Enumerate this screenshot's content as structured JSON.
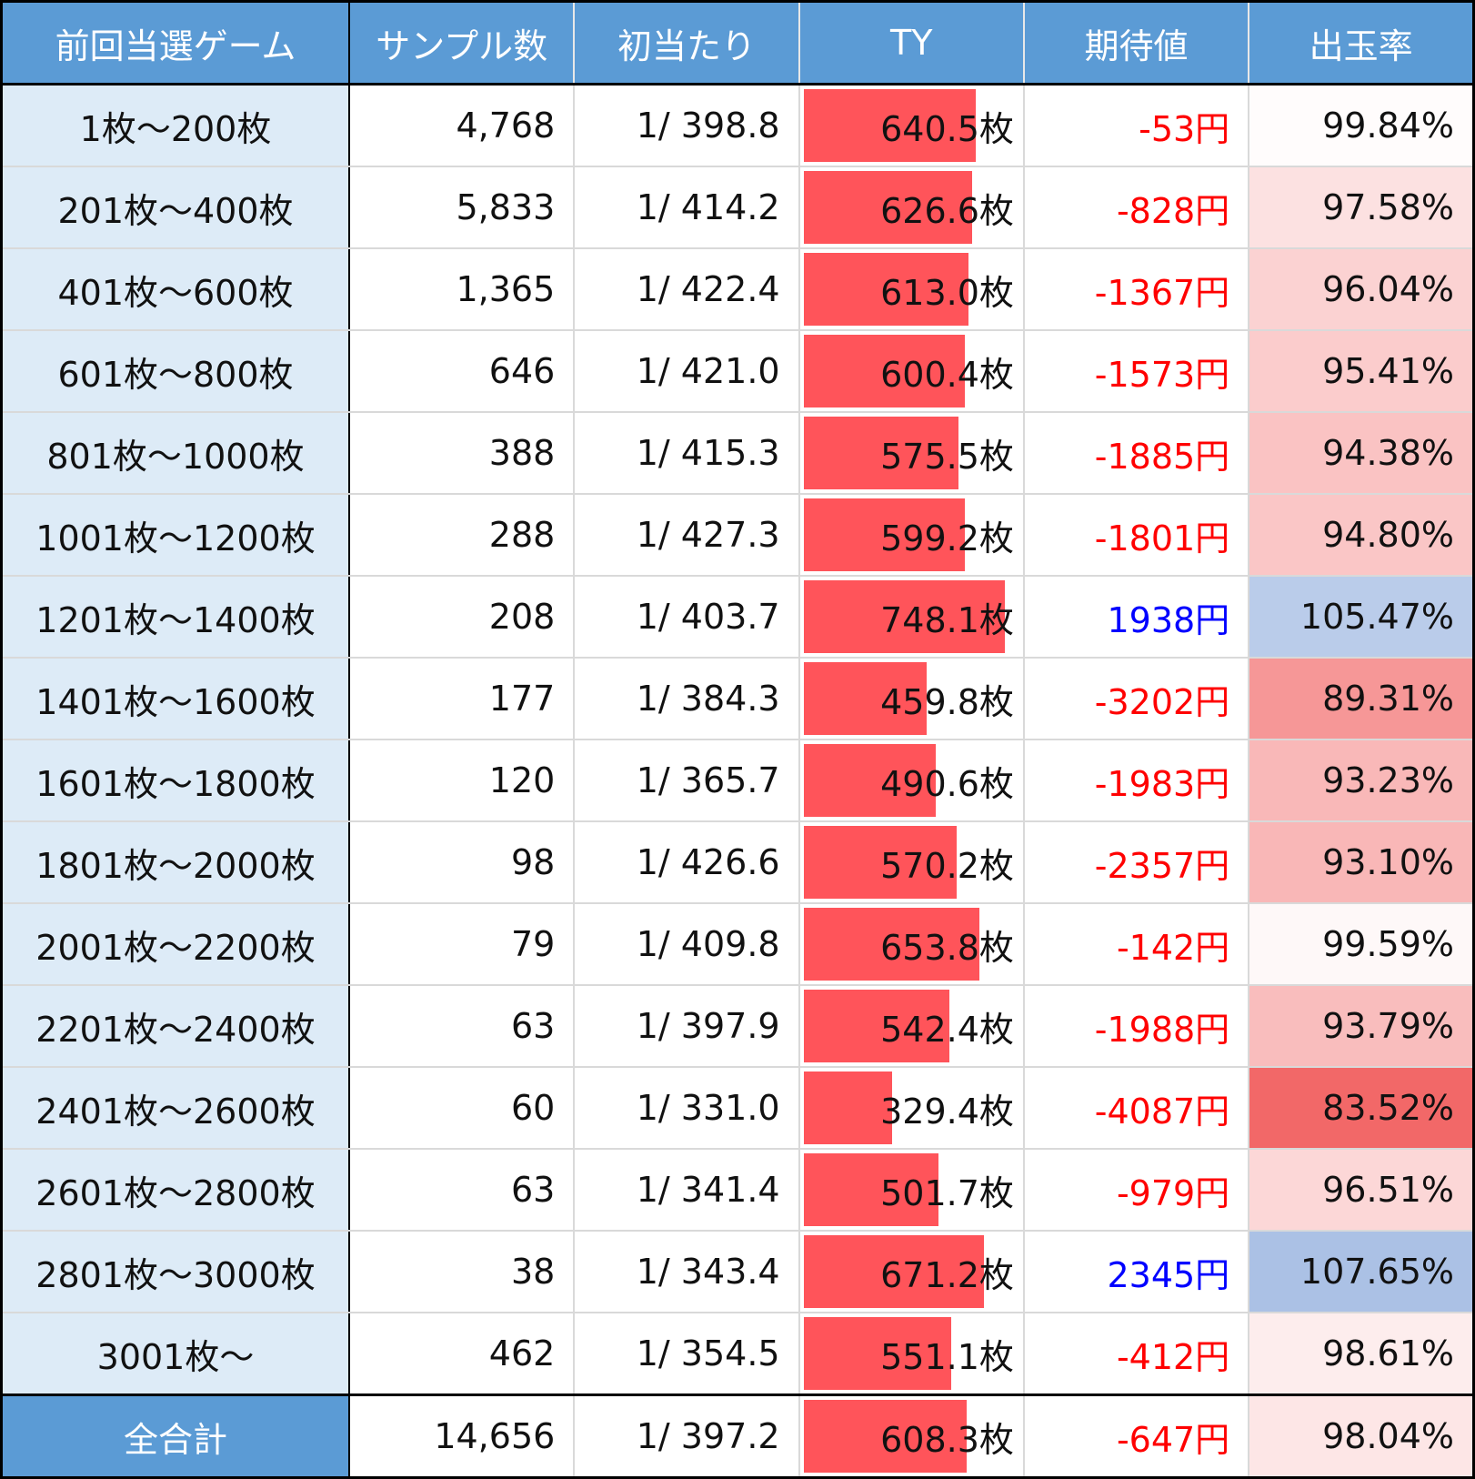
{
  "headers": [
    "前回当選ゲーム",
    "サンプル数",
    "初当たり",
    "TY",
    "期待値",
    "出玉率"
  ],
  "rows": [
    {
      "range": "1枚～200枚",
      "samples": "4,768",
      "first_hit": "1/ 398.8",
      "ty": 640.5,
      "ty_label": "640.5枚",
      "ev": "-53円",
      "ev_sign": "neg",
      "rate": 99.84,
      "rate_label": "99.84%"
    },
    {
      "range": "201枚～400枚",
      "samples": "5,833",
      "first_hit": "1/ 414.2",
      "ty": 626.6,
      "ty_label": "626.6枚",
      "ev": "-828円",
      "ev_sign": "neg",
      "rate": 97.58,
      "rate_label": "97.58%"
    },
    {
      "range": "401枚～600枚",
      "samples": "1,365",
      "first_hit": "1/ 422.4",
      "ty": 613.0,
      "ty_label": "613.0枚",
      "ev": "-1367円",
      "ev_sign": "neg",
      "rate": 96.04,
      "rate_label": "96.04%"
    },
    {
      "range": "601枚～800枚",
      "samples": "646",
      "first_hit": "1/ 421.0",
      "ty": 600.4,
      "ty_label": "600.4枚",
      "ev": "-1573円",
      "ev_sign": "neg",
      "rate": 95.41,
      "rate_label": "95.41%"
    },
    {
      "range": "801枚～1000枚",
      "samples": "388",
      "first_hit": "1/ 415.3",
      "ty": 575.5,
      "ty_label": "575.5枚",
      "ev": "-1885円",
      "ev_sign": "neg",
      "rate": 94.38,
      "rate_label": "94.38%"
    },
    {
      "range": "1001枚～1200枚",
      "samples": "288",
      "first_hit": "1/ 427.3",
      "ty": 599.2,
      "ty_label": "599.2枚",
      "ev": "-1801円",
      "ev_sign": "neg",
      "rate": 94.8,
      "rate_label": "94.80%"
    },
    {
      "range": "1201枚～1400枚",
      "samples": "208",
      "first_hit": "1/ 403.7",
      "ty": 748.1,
      "ty_label": "748.1枚",
      "ev": "1938円",
      "ev_sign": "pos",
      "rate": 105.47,
      "rate_label": "105.47%"
    },
    {
      "range": "1401枚～1600枚",
      "samples": "177",
      "first_hit": "1/ 384.3",
      "ty": 459.8,
      "ty_label": "459.8枚",
      "ev": "-3202円",
      "ev_sign": "neg",
      "rate": 89.31,
      "rate_label": "89.31%"
    },
    {
      "range": "1601枚～1800枚",
      "samples": "120",
      "first_hit": "1/ 365.7",
      "ty": 490.6,
      "ty_label": "490.6枚",
      "ev": "-1983円",
      "ev_sign": "neg",
      "rate": 93.23,
      "rate_label": "93.23%"
    },
    {
      "range": "1801枚～2000枚",
      "samples": "98",
      "first_hit": "1/ 426.6",
      "ty": 570.2,
      "ty_label": "570.2枚",
      "ev": "-2357円",
      "ev_sign": "neg",
      "rate": 93.1,
      "rate_label": "93.10%"
    },
    {
      "range": "2001枚～2200枚",
      "samples": "79",
      "first_hit": "1/ 409.8",
      "ty": 653.8,
      "ty_label": "653.8枚",
      "ev": "-142円",
      "ev_sign": "neg",
      "rate": 99.59,
      "rate_label": "99.59%"
    },
    {
      "range": "2201枚～2400枚",
      "samples": "63",
      "first_hit": "1/ 397.9",
      "ty": 542.4,
      "ty_label": "542.4枚",
      "ev": "-1988円",
      "ev_sign": "neg",
      "rate": 93.79,
      "rate_label": "93.79%"
    },
    {
      "range": "2401枚～2600枚",
      "samples": "60",
      "first_hit": "1/ 331.0",
      "ty": 329.4,
      "ty_label": "329.4枚",
      "ev": "-4087円",
      "ev_sign": "neg",
      "rate": 83.52,
      "rate_label": "83.52%"
    },
    {
      "range": "2601枚～2800枚",
      "samples": "63",
      "first_hit": "1/ 341.4",
      "ty": 501.7,
      "ty_label": "501.7枚",
      "ev": "-979円",
      "ev_sign": "neg",
      "rate": 96.51,
      "rate_label": "96.51%"
    },
    {
      "range": "2801枚～3000枚",
      "samples": "38",
      "first_hit": "1/ 343.4",
      "ty": 671.2,
      "ty_label": "671.2枚",
      "ev": "2345円",
      "ev_sign": "pos",
      "rate": 107.65,
      "rate_label": "107.65%"
    },
    {
      "range": "3001枚～",
      "samples": "462",
      "first_hit": "1/ 354.5",
      "ty": 551.1,
      "ty_label": "551.1枚",
      "ev": "-412円",
      "ev_sign": "neg",
      "rate": 98.61,
      "rate_label": "98.61%"
    }
  ],
  "total": {
    "range": "全合計",
    "samples": "14,656",
    "first_hit": "1/ 397.2",
    "ty": 608.3,
    "ty_label": "608.3枚",
    "ev": "-647円",
    "ev_sign": "neg",
    "rate": 98.04,
    "rate_label": "98.04%"
  },
  "chart_data": {
    "type": "table",
    "ty_bar_max": 830,
    "colors": {
      "header": "#5b9bd5",
      "label_bg": "#ddebf7",
      "bar": "#ff545a",
      "neg": "#ff0000",
      "pos": "#0000ff",
      "rate_low": "#f26868",
      "rate_high": "#a9bfe4"
    }
  }
}
